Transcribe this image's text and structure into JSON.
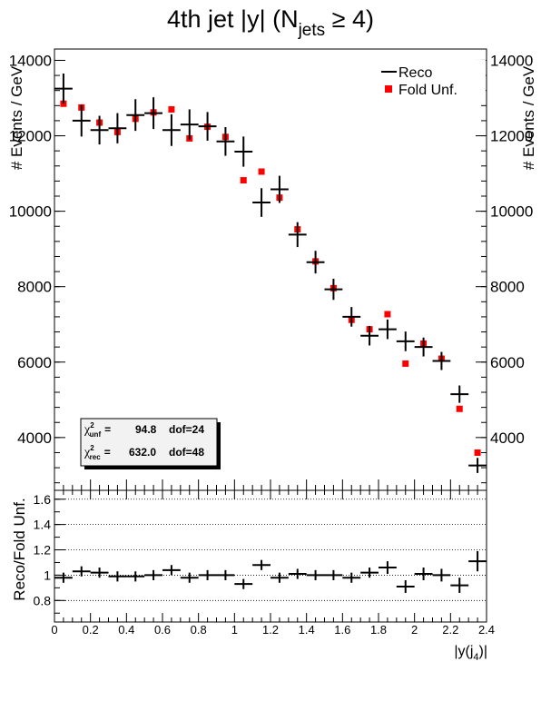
{
  "chart_data": [
    {
      "type": "scatter",
      "title": "4th jet |y| (N_jets ≥ 4)",
      "title_parts": {
        "main": "4th jet |y| (N",
        "sub": "jets",
        "tail": " ≥ 4)"
      },
      "ylabel": "# Events / GeV",
      "ylim": [
        2600,
        14300
      ],
      "yticks": [
        4000,
        6000,
        8000,
        10000,
        12000,
        14000
      ],
      "xlim": [
        0,
        2.4
      ],
      "legend": {
        "placement": "top-right",
        "entries": [
          {
            "label": "Reco",
            "color": "#000000",
            "marker": "cross"
          },
          {
            "label": "Fold Unf.",
            "color": "#ff0000",
            "marker": "square"
          }
        ]
      },
      "stats_box": {
        "placement": "bottom-left",
        "unf": {
          "label": "unf",
          "chi2": "94.8",
          "dof": "dof=24"
        },
        "rec": {
          "label": "rec",
          "chi2": "632.0",
          "dof": "dof=48"
        }
      },
      "x": [
        0.05,
        0.15,
        0.25,
        0.35,
        0.45,
        0.55,
        0.65,
        0.75,
        0.85,
        0.95,
        1.05,
        1.15,
        1.25,
        1.35,
        1.45,
        1.55,
        1.65,
        1.75,
        1.85,
        1.95,
        2.05,
        2.15,
        2.25,
        2.35
      ],
      "series": [
        {
          "name": "Reco",
          "color": "#000000",
          "marker": "cross",
          "values": [
            13250,
            12400,
            12150,
            12200,
            12550,
            12600,
            12150,
            12300,
            12250,
            11850,
            11580,
            10230,
            10580,
            9380,
            8650,
            7930,
            7200,
            6700,
            6870,
            6550,
            6400,
            6030,
            5150,
            3260
          ],
          "errors": [
            400,
            420,
            380,
            400,
            420,
            420,
            420,
            400,
            380,
            380,
            400,
            380,
            360,
            330,
            300,
            280,
            260,
            260,
            260,
            260,
            250,
            240,
            230,
            200
          ]
        },
        {
          "name": "Fold Unf.",
          "color": "#ff0000",
          "marker": "square",
          "values": [
            12850,
            12750,
            12350,
            12100,
            12450,
            12620,
            12700,
            11930,
            12240,
            11970,
            10820,
            11050,
            10360,
            9520,
            8670,
            7960,
            7120,
            6870,
            7270,
            5960,
            6490,
            6090,
            4760,
            3600
          ]
        }
      ]
    },
    {
      "type": "scatter",
      "ylabel": "Reco/Fold Unf.",
      "xlabel": "|y(j_4)|",
      "xlabel_parts": {
        "main": "|y(j",
        "sub": "4",
        "tail": ")|"
      },
      "ylim": [
        0.63,
        1.67
      ],
      "yticks": [
        0.8,
        1.0,
        1.2,
        1.4,
        1.6
      ],
      "ytick_labels": [
        "0.8",
        "1",
        "1.2",
        "1.4",
        "1.6"
      ],
      "xlim": [
        0,
        2.4
      ],
      "xticks": [
        0,
        0.2,
        0.4,
        0.6,
        0.8,
        1.0,
        1.2,
        1.4,
        1.6,
        1.8,
        2.0,
        2.2,
        2.4
      ],
      "xtick_labels": [
        "0",
        "0.2",
        "0.4",
        "0.6",
        "0.8",
        "1",
        "1.2",
        "1.4",
        "1.6",
        "1.8",
        "2",
        "2.2",
        "2.4"
      ],
      "grid": "horizontal dotted",
      "x": [
        0.05,
        0.15,
        0.25,
        0.35,
        0.45,
        0.55,
        0.65,
        0.75,
        0.85,
        0.95,
        1.05,
        1.15,
        1.25,
        1.35,
        1.45,
        1.55,
        1.65,
        1.75,
        1.85,
        1.95,
        2.05,
        2.15,
        2.25,
        2.35
      ],
      "series": [
        {
          "name": "Reco/Fold Unf.",
          "color": "#000000",
          "marker": "cross",
          "values": [
            0.98,
            1.03,
            1.02,
            0.99,
            0.99,
            1.0,
            1.04,
            0.98,
            1.0,
            1.0,
            0.93,
            1.08,
            0.98,
            1.01,
            1.0,
            1.0,
            0.98,
            1.02,
            1.06,
            0.91,
            1.01,
            1.0,
            0.92,
            1.11
          ],
          "errors": [
            0.04,
            0.04,
            0.04,
            0.04,
            0.04,
            0.04,
            0.04,
            0.04,
            0.04,
            0.04,
            0.04,
            0.04,
            0.04,
            0.04,
            0.04,
            0.04,
            0.04,
            0.04,
            0.05,
            0.05,
            0.05,
            0.05,
            0.06,
            0.08
          ]
        }
      ]
    }
  ]
}
